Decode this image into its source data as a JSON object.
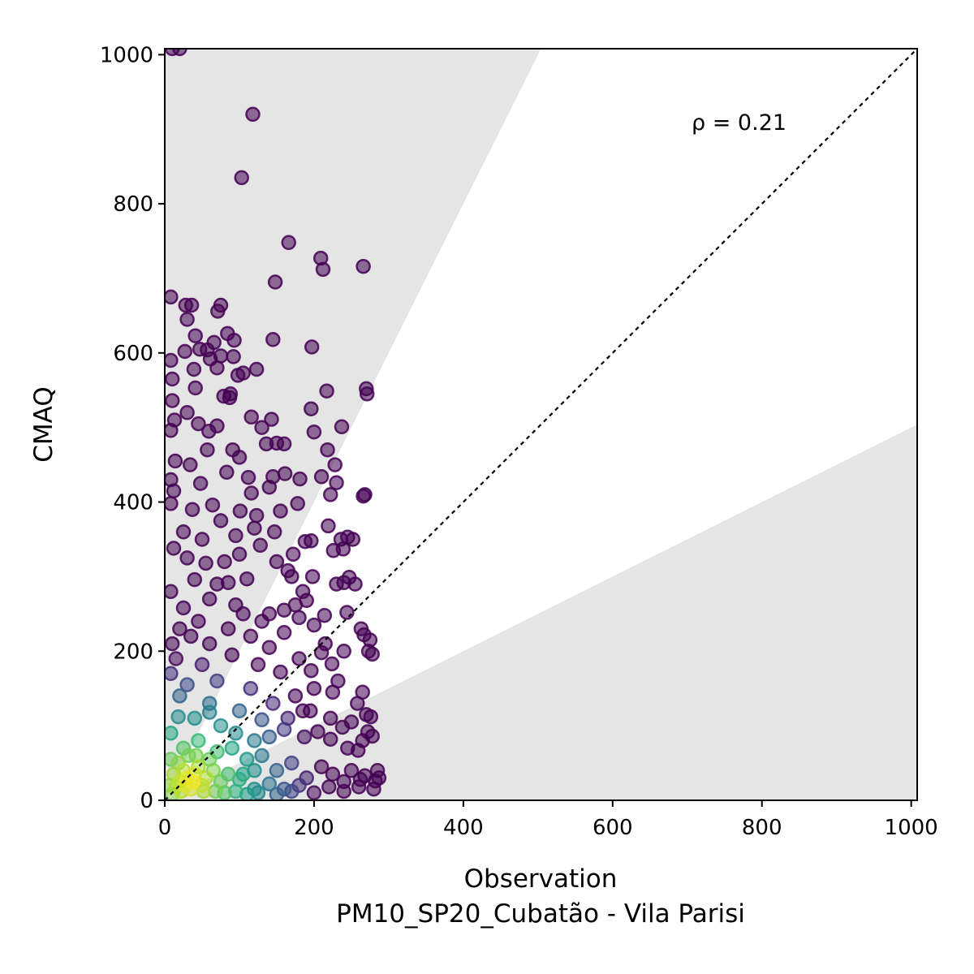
{
  "chart_data": {
    "type": "scatter",
    "title": "",
    "xlabel": "Observation",
    "xlabel_sub": "PM10_SP20_Cubatão - Vila Parisi",
    "ylabel": "CMAQ",
    "xlim": [
      0,
      1008
    ],
    "ylim": [
      0,
      1008
    ],
    "x_ticks": [
      0,
      200,
      400,
      600,
      800,
      1000
    ],
    "y_ticks": [
      0,
      200,
      400,
      600,
      800,
      1000
    ],
    "grid": false,
    "annotation": "ρ = 0.21",
    "identity_line": true,
    "bands": {
      "upper_factor": 2,
      "lower_factor": 0.5,
      "color": "#e5e5e5"
    },
    "colormap": "viridis",
    "marker_alpha": 0.55,
    "points": [
      [
        10,
        1008
      ],
      [
        20,
        1008
      ],
      [
        118,
        920
      ],
      [
        103,
        835
      ],
      [
        166,
        748
      ],
      [
        148,
        695
      ],
      [
        209,
        727
      ],
      [
        212,
        712
      ],
      [
        266,
        716
      ],
      [
        8,
        675
      ],
      [
        28,
        664
      ],
      [
        36,
        664
      ],
      [
        75,
        664
      ],
      [
        71,
        656
      ],
      [
        30,
        645
      ],
      [
        41,
        623
      ],
      [
        66,
        614
      ],
      [
        84,
        626
      ],
      [
        93,
        617
      ],
      [
        145,
        618
      ],
      [
        8,
        590
      ],
      [
        27,
        602
      ],
      [
        47,
        605
      ],
      [
        57,
        604
      ],
      [
        61,
        592
      ],
      [
        75,
        596
      ],
      [
        92,
        595
      ],
      [
        197,
        608
      ],
      [
        39,
        578
      ],
      [
        70,
        580
      ],
      [
        105,
        573
      ],
      [
        98,
        570
      ],
      [
        123,
        578
      ],
      [
        270,
        552
      ],
      [
        271,
        545
      ],
      [
        10,
        565
      ],
      [
        10,
        536
      ],
      [
        41,
        553
      ],
      [
        79,
        542
      ],
      [
        87,
        540
      ],
      [
        88,
        545
      ],
      [
        217,
        549
      ],
      [
        196,
        525
      ],
      [
        13,
        510
      ],
      [
        30,
        520
      ],
      [
        45,
        505
      ],
      [
        59,
        495
      ],
      [
        70,
        502
      ],
      [
        116,
        514
      ],
      [
        130,
        500
      ],
      [
        143,
        511
      ],
      [
        200,
        494
      ],
      [
        237,
        501
      ],
      [
        8,
        496
      ],
      [
        14,
        455
      ],
      [
        34,
        450
      ],
      [
        57,
        470
      ],
      [
        91,
        470
      ],
      [
        100,
        460
      ],
      [
        136,
        478
      ],
      [
        150,
        479
      ],
      [
        160,
        478
      ],
      [
        218,
        470
      ],
      [
        228,
        450
      ],
      [
        8,
        430
      ],
      [
        12,
        415
      ],
      [
        48,
        425
      ],
      [
        83,
        440
      ],
      [
        112,
        433
      ],
      [
        145,
        434
      ],
      [
        161,
        438
      ],
      [
        181,
        431
      ],
      [
        210,
        434
      ],
      [
        230,
        426
      ],
      [
        268,
        410
      ],
      [
        266,
        408
      ],
      [
        222,
        410
      ],
      [
        140,
        420
      ],
      [
        116,
        412
      ],
      [
        8,
        398
      ],
      [
        37,
        390
      ],
      [
        64,
        396
      ],
      [
        101,
        388
      ],
      [
        123,
        382
      ],
      [
        155,
        388
      ],
      [
        178,
        398
      ],
      [
        236,
        350
      ],
      [
        226,
        335
      ],
      [
        239,
        337
      ],
      [
        245,
        353
      ],
      [
        252,
        350
      ],
      [
        219,
        368
      ],
      [
        196,
        348
      ],
      [
        188,
        347
      ],
      [
        172,
        330
      ],
      [
        147,
        360
      ],
      [
        128,
        342
      ],
      [
        100,
        330
      ],
      [
        80,
        320
      ],
      [
        55,
        318
      ],
      [
        30,
        325
      ],
      [
        12,
        338
      ],
      [
        247,
        299
      ],
      [
        240,
        292
      ],
      [
        255,
        290
      ],
      [
        230,
        290
      ],
      [
        198,
        300
      ],
      [
        165,
        308
      ],
      [
        110,
        297
      ],
      [
        85,
        292
      ],
      [
        40,
        296
      ],
      [
        263,
        230
      ],
      [
        267,
        222
      ],
      [
        275,
        215
      ],
      [
        244,
        252
      ],
      [
        214,
        248
      ],
      [
        190,
        268
      ],
      [
        175,
        262
      ],
      [
        160,
        255
      ],
      [
        140,
        250
      ],
      [
        95,
        262
      ],
      [
        60,
        270
      ],
      [
        25,
        258
      ],
      [
        8,
        280
      ],
      [
        273,
        200
      ],
      [
        278,
        196
      ],
      [
        240,
        200
      ],
      [
        224,
        183
      ],
      [
        210,
        198
      ],
      [
        196,
        174
      ],
      [
        180,
        190
      ],
      [
        155,
        172
      ],
      [
        125,
        182
      ],
      [
        90,
        195
      ],
      [
        50,
        182
      ],
      [
        15,
        190
      ],
      [
        232,
        160
      ],
      [
        225,
        145
      ],
      [
        265,
        145
      ],
      [
        258,
        130
      ],
      [
        270,
        115
      ],
      [
        276,
        112
      ],
      [
        250,
        105
      ],
      [
        238,
        98
      ],
      [
        222,
        110
      ],
      [
        195,
        120
      ],
      [
        175,
        140
      ],
      [
        145,
        130
      ],
      [
        115,
        150
      ],
      [
        70,
        160
      ],
      [
        30,
        155
      ],
      [
        8,
        170
      ],
      [
        272,
        92
      ],
      [
        278,
        86
      ],
      [
        265,
        80
      ],
      [
        259,
        67
      ],
      [
        245,
        70
      ],
      [
        222,
        82
      ],
      [
        205,
        92
      ],
      [
        187,
        85
      ],
      [
        160,
        95
      ],
      [
        130,
        108
      ],
      [
        100,
        120
      ],
      [
        60,
        118
      ],
      [
        18,
        112
      ],
      [
        285,
        40
      ],
      [
        287,
        30
      ],
      [
        282,
        26
      ],
      [
        268,
        33
      ],
      [
        262,
        28
      ],
      [
        250,
        40
      ],
      [
        240,
        25
      ],
      [
        225,
        35
      ],
      [
        210,
        45
      ],
      [
        190,
        30
      ],
      [
        170,
        50
      ],
      [
        150,
        40
      ],
      [
        130,
        60
      ],
      [
        110,
        55
      ],
      [
        90,
        70
      ],
      [
        70,
        65
      ],
      [
        45,
        80
      ],
      [
        25,
        70
      ],
      [
        8,
        90
      ],
      [
        280,
        15
      ],
      [
        260,
        18
      ],
      [
        240,
        12
      ],
      [
        220,
        18
      ],
      [
        200,
        10
      ],
      [
        180,
        20
      ],
      [
        160,
        15
      ],
      [
        140,
        22
      ],
      [
        120,
        15
      ],
      [
        100,
        28
      ],
      [
        85,
        35
      ],
      [
        75,
        25
      ],
      [
        65,
        40
      ],
      [
        55,
        30
      ],
      [
        50,
        20
      ],
      [
        45,
        45
      ],
      [
        40,
        35
      ],
      [
        38,
        25
      ],
      [
        35,
        15
      ],
      [
        30,
        30
      ],
      [
        28,
        20
      ],
      [
        25,
        40
      ],
      [
        22,
        12
      ],
      [
        20,
        25
      ],
      [
        18,
        50
      ],
      [
        15,
        18
      ],
      [
        12,
        35
      ],
      [
        10,
        8
      ],
      [
        8,
        55
      ],
      [
        6,
        20
      ],
      [
        42,
        60
      ],
      [
        60,
        55
      ],
      [
        32,
        60
      ],
      [
        52,
        12
      ],
      [
        68,
        12
      ],
      [
        80,
        10
      ],
      [
        95,
        12
      ],
      [
        110,
        8
      ],
      [
        125,
        10
      ],
      [
        150,
        8
      ],
      [
        170,
        12
      ],
      [
        120,
        80
      ],
      [
        95,
        90
      ],
      [
        75,
        100
      ],
      [
        60,
        130
      ],
      [
        40,
        110
      ],
      [
        20,
        140
      ],
      [
        35,
        220
      ],
      [
        60,
        210
      ],
      [
        85,
        230
      ],
      [
        115,
        220
      ],
      [
        140,
        205
      ],
      [
        160,
        225
      ],
      [
        130,
        240
      ],
      [
        105,
        250
      ],
      [
        45,
        240
      ],
      [
        20,
        230
      ],
      [
        10,
        210
      ],
      [
        70,
        290
      ],
      [
        50,
        350
      ],
      [
        95,
        355
      ],
      [
        120,
        365
      ],
      [
        75,
        375
      ],
      [
        25,
        360
      ],
      [
        150,
        320
      ],
      [
        170,
        300
      ],
      [
        185,
        280
      ],
      [
        180,
        245
      ],
      [
        200,
        235
      ],
      [
        215,
        210
      ],
      [
        200,
        150
      ],
      [
        185,
        120
      ],
      [
        165,
        110
      ],
      [
        140,
        85
      ],
      [
        120,
        40
      ],
      [
        105,
        35
      ]
    ]
  }
}
